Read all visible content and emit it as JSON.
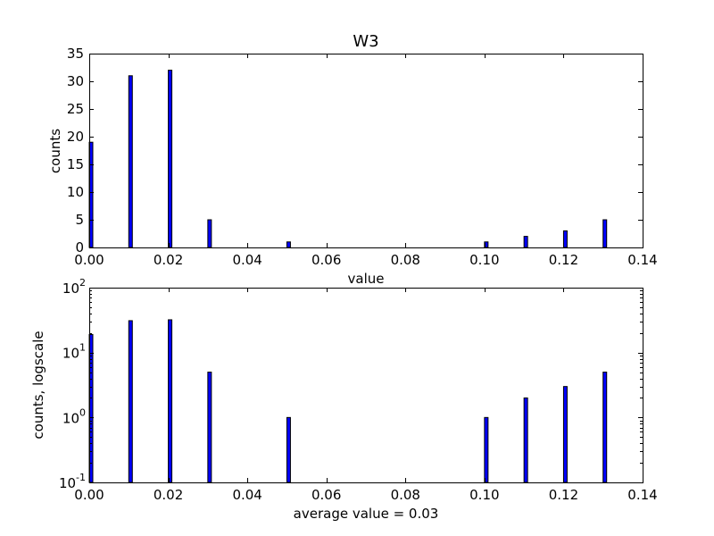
{
  "colors": {
    "bar": "#0000ff",
    "edge": "#000000",
    "background": "#ffffff"
  },
  "chart_data": [
    {
      "type": "bar",
      "title": "W3",
      "xlabel": "value",
      "ylabel": "counts",
      "xlim": [
        0,
        0.14
      ],
      "ylim": [
        0,
        35
      ],
      "yscale": "linear",
      "grid": false,
      "x": [
        0.0,
        0.01,
        0.02,
        0.03,
        0.05,
        0.1,
        0.11,
        0.12,
        0.13
      ],
      "values": [
        19,
        31,
        32,
        5,
        1,
        1,
        2,
        3,
        5
      ],
      "x_ticks": [
        "0.00",
        "0.02",
        "0.04",
        "0.06",
        "0.08",
        "0.10",
        "0.12",
        "0.14"
      ],
      "y_ticks": [
        "0",
        "5",
        "10",
        "15",
        "20",
        "25",
        "30",
        "35"
      ]
    },
    {
      "type": "bar",
      "title": "",
      "xlabel": "average value = 0.03",
      "ylabel": "counts, logscale",
      "xlim": [
        0,
        0.14
      ],
      "ylim": [
        0.1,
        100
      ],
      "yscale": "log",
      "grid": false,
      "x": [
        0.0,
        0.01,
        0.02,
        0.03,
        0.05,
        0.1,
        0.11,
        0.12,
        0.13
      ],
      "values": [
        19,
        31,
        32,
        5,
        1,
        1,
        2,
        3,
        5
      ],
      "x_ticks": [
        "0.00",
        "0.02",
        "0.04",
        "0.06",
        "0.08",
        "0.10",
        "0.12",
        "0.14"
      ],
      "y_ticks": [
        {
          "base": "10",
          "exp": "-1"
        },
        {
          "base": "10",
          "exp": "0"
        },
        {
          "base": "10",
          "exp": "1"
        },
        {
          "base": "10",
          "exp": "2"
        }
      ]
    }
  ]
}
